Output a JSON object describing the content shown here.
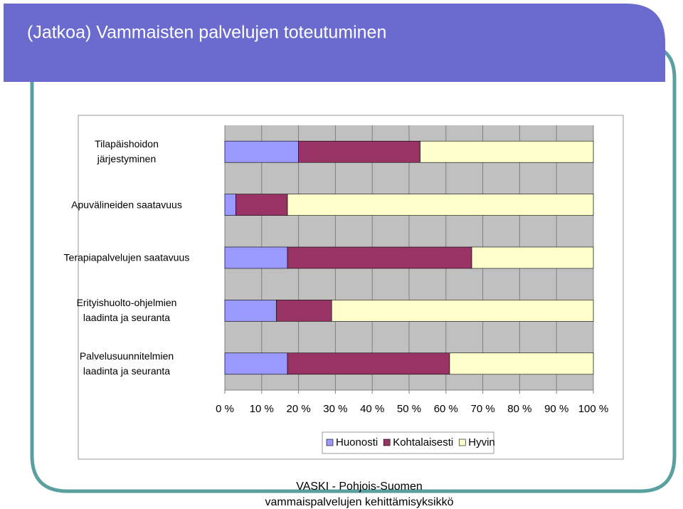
{
  "slide_title": "(Jatkoa) Vammaisten palvelujen toteutuminen",
  "footer": [
    "VASKI - Pohjois-Suomen",
    "vammaispalvelujen kehittämisyksikkö"
  ],
  "chart_data": {
    "type": "stacked-barh",
    "categories": [
      "Tilapäishoidon\njärjestyminen",
      "Apuvälineiden saatavuus",
      "Terapiapalvelujen saatavuus",
      "Erityishuolto-ohjelmien\nlaadinta ja seuranta",
      "Palvelusuunnitelmien\nlaadinta ja seuranta"
    ],
    "series": [
      {
        "name": "Huonosti",
        "color": "#9999ff",
        "values": [
          20,
          3,
          17,
          14,
          17
        ]
      },
      {
        "name": "Kohtalaisesti",
        "color": "#993366",
        "values": [
          33,
          14,
          50,
          15,
          44
        ]
      },
      {
        "name": "Hyvin",
        "color": "#ffffcc",
        "values": [
          47,
          83,
          33,
          71,
          39
        ]
      }
    ],
    "xlim": [
      0,
      100
    ],
    "xticks": [
      {
        "value": 0,
        "label": "0 %"
      },
      {
        "value": 10,
        "label": "10 %"
      },
      {
        "value": 20,
        "label": "20 %"
      },
      {
        "value": 30,
        "label": "30 %"
      },
      {
        "value": 40,
        "label": "40 %"
      },
      {
        "value": 50,
        "label": "50 %"
      },
      {
        "value": 60,
        "label": "60 %"
      },
      {
        "value": 70,
        "label": "70 %"
      },
      {
        "value": 80,
        "label": "80 %"
      },
      {
        "value": 90,
        "label": "90 %"
      },
      {
        "value": 100,
        "label": "100 %"
      }
    ],
    "grid": true,
    "legend": "bottom"
  }
}
